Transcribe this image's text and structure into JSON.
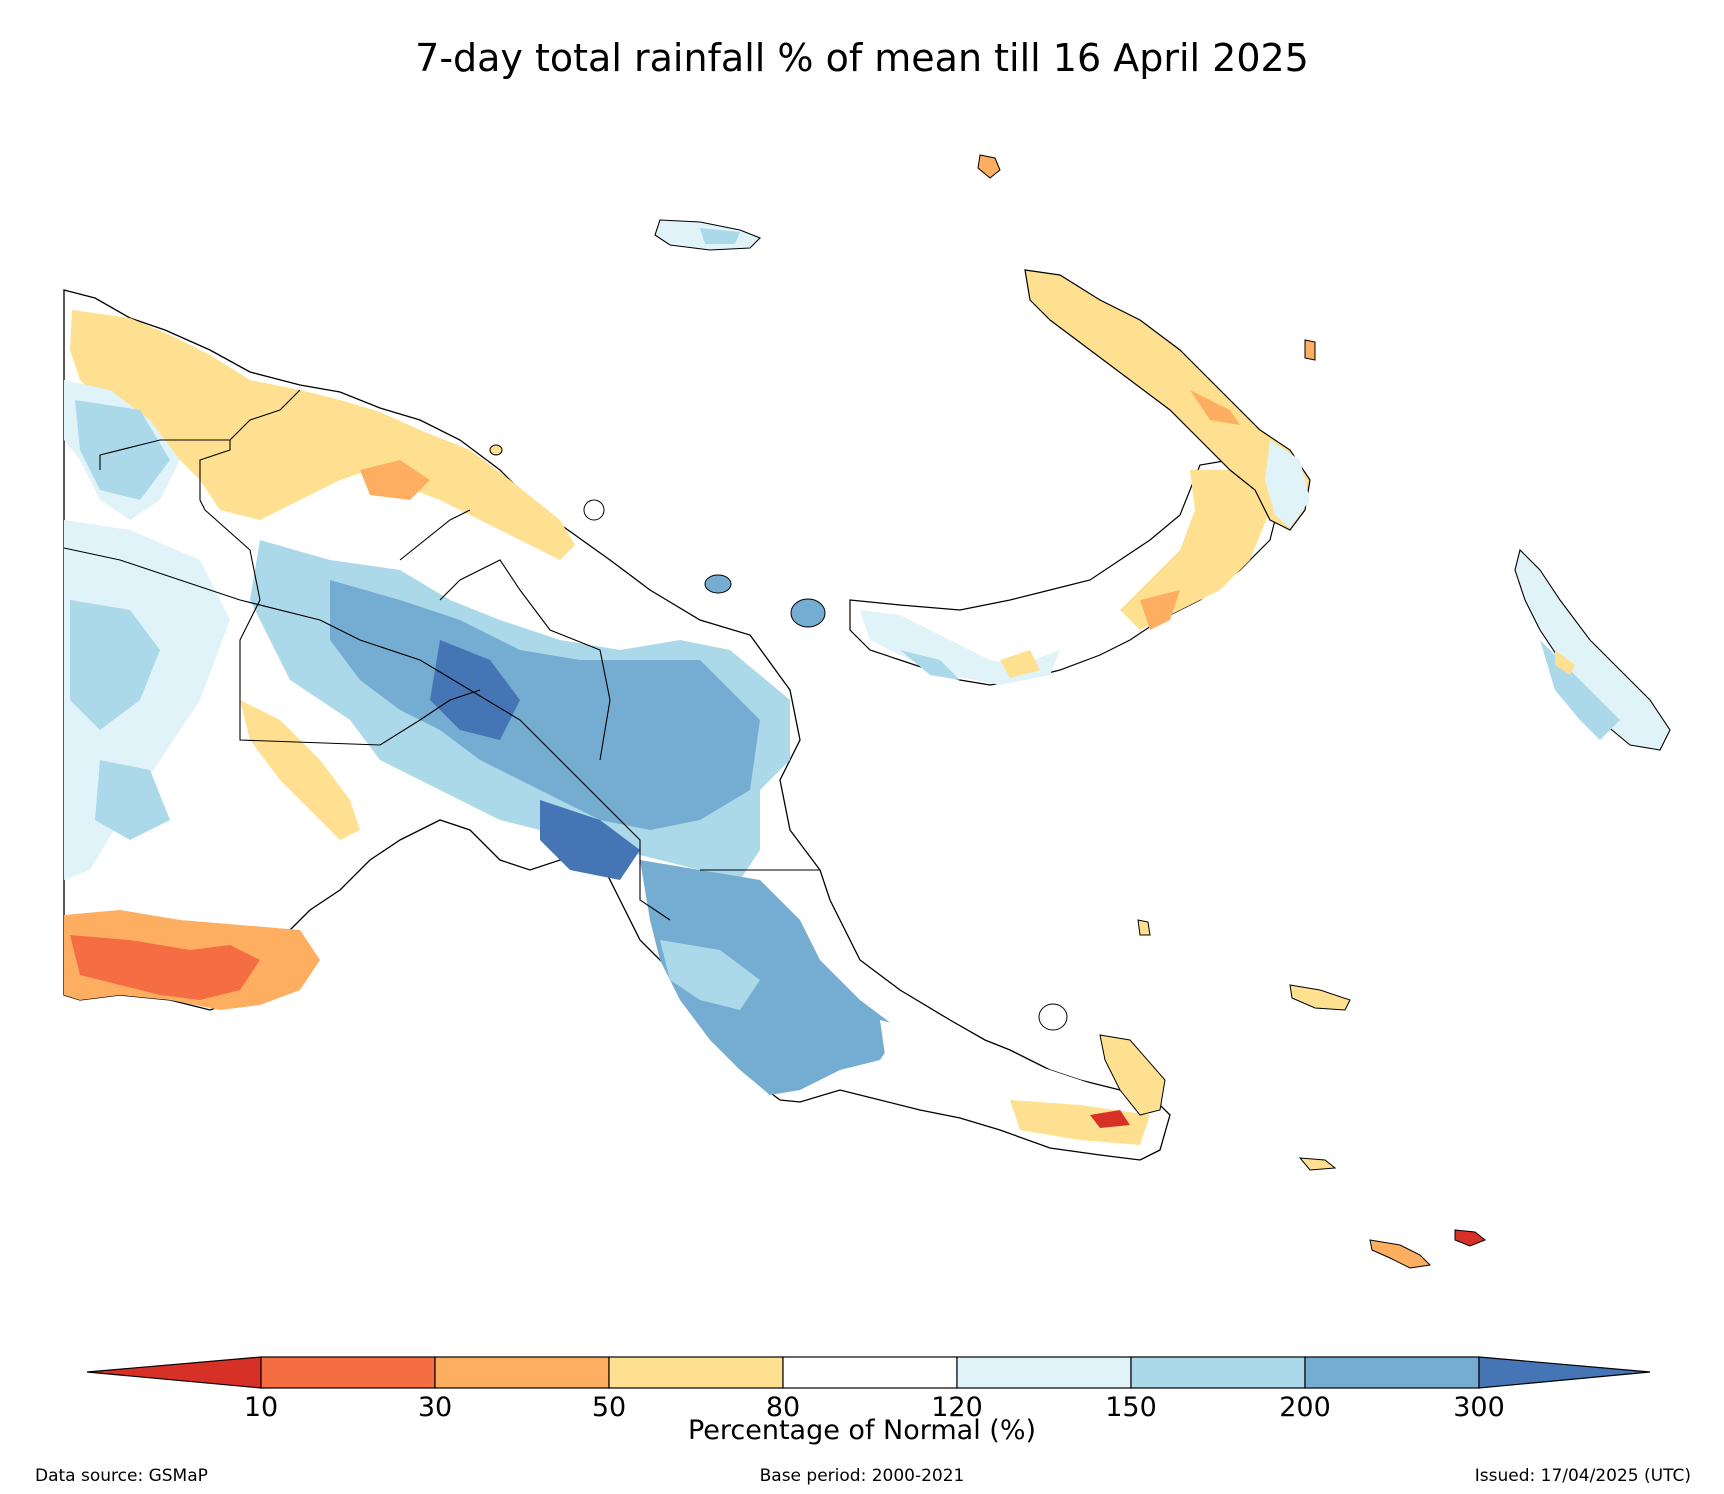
{
  "title": "7-day total rainfall % of mean till 16 April 2025",
  "legend": {
    "label": "Percentage of Normal (%)",
    "ticks": [
      "10",
      "30",
      "50",
      "80",
      "120",
      "150",
      "200",
      "300"
    ],
    "colors": {
      "below_10": "#d73027",
      "10_30": "#f46d43",
      "30_50": "#fdae61",
      "50_80": "#fee090",
      "80_120": "#ffffff",
      "120_150": "#e0f3f8",
      "150_200": "#abd9e9",
      "200_300": "#74add1",
      "above_300": "#4575b4"
    }
  },
  "footer": {
    "source": "Data source: GSMaP",
    "base_period": "Base period: 2000-2021",
    "issued": "Issued: 17/04/2025 (UTC)"
  }
}
